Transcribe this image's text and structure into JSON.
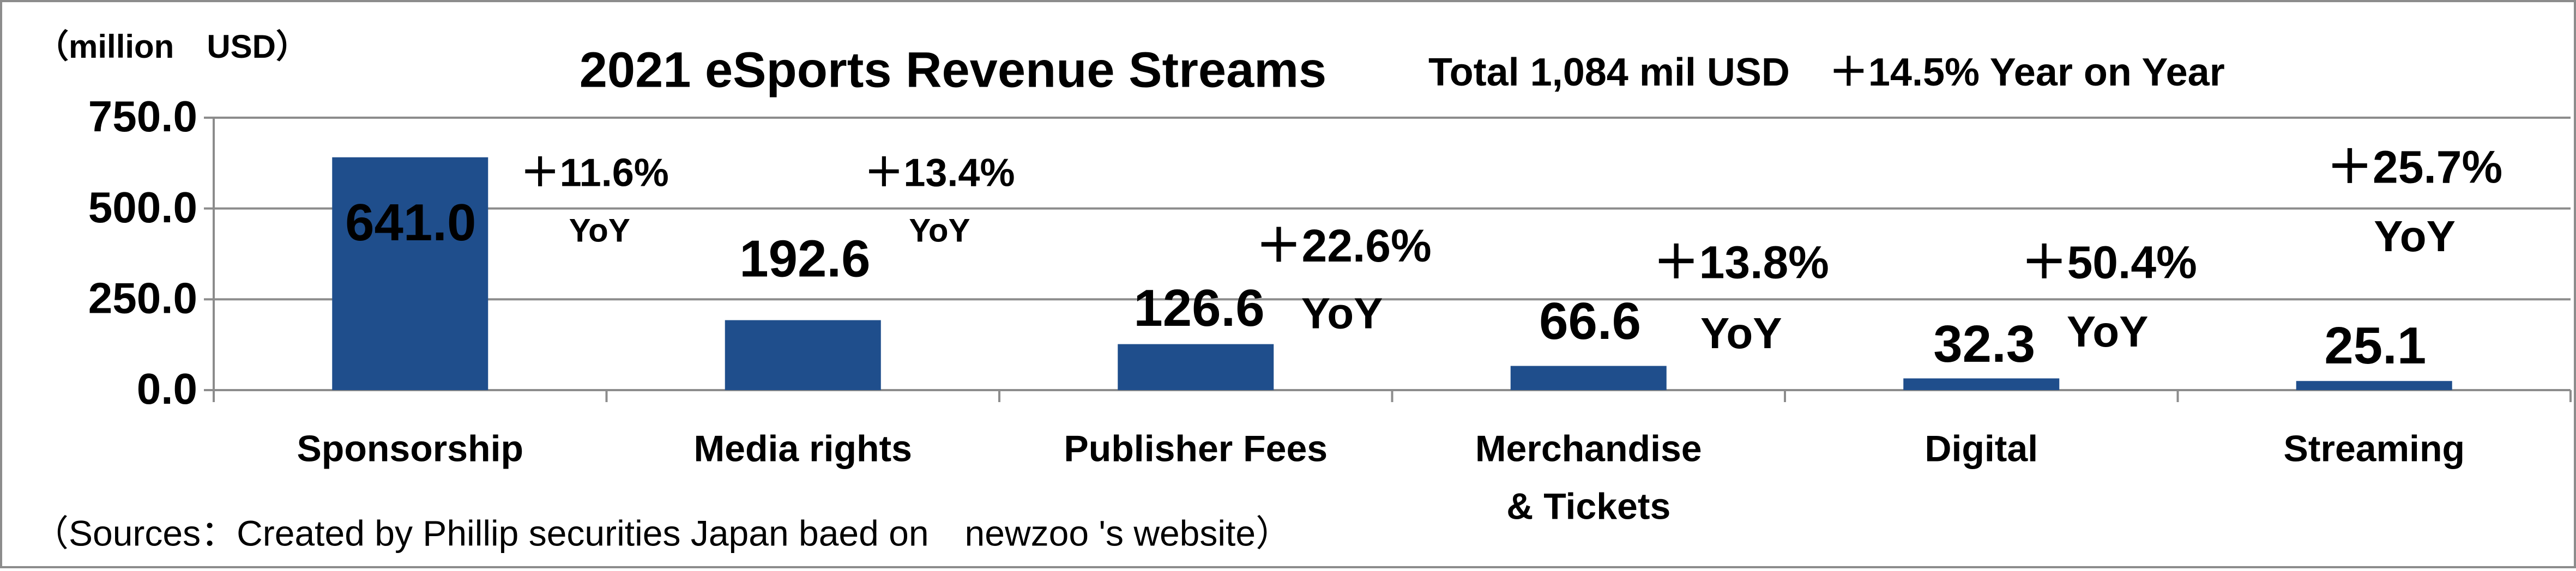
{
  "chart_data": {
    "type": "bar",
    "title": "2021 eSports Revenue Streams",
    "subtitle": "Total 1,084 mil USD　＋14.5% Year on Year",
    "unit_label": "（million　USD）",
    "source": "（Sources：Created by Phillip securities Japan baed on　newzoo 's  website）",
    "categories": [
      "Sponsorship",
      "Media rights",
      "Publisher Fees",
      "Merchandise\n& Tickets",
      "Digital",
      "Streaming"
    ],
    "values": [
      641.0,
      192.6,
      126.6,
      66.6,
      32.3,
      25.1
    ],
    "value_labels": [
      "641.0",
      "192.6",
      "126.6",
      "66.6",
      "32.3",
      "25.1"
    ],
    "yoy_changes": [
      "＋11.6%",
      "＋13.4%",
      "＋22.6%",
      "＋13.8%",
      "＋50.4%",
      "＋25.7%"
    ],
    "yoy_label": "YoY",
    "color": "#1f4e8c",
    "ylim": [
      0,
      750
    ],
    "yticks": [
      {
        "value": 0,
        "label": "0.0"
      },
      {
        "value": 250,
        "label": "250.0"
      },
      {
        "value": 500,
        "label": "500.0"
      },
      {
        "value": 750,
        "label": "750.0"
      }
    ],
    "grid": true
  }
}
